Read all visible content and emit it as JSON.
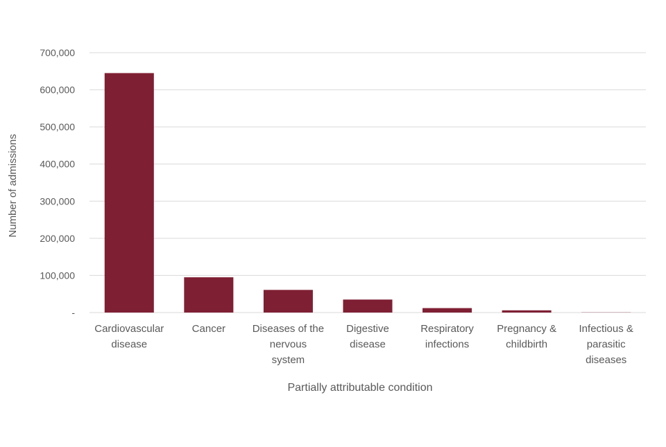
{
  "chart_data": {
    "type": "bar",
    "title": "",
    "xlabel": "Partially attributable condition",
    "ylabel": "Number of admissions",
    "categories": [
      [
        "Cardiovascular",
        "disease"
      ],
      [
        "Cancer"
      ],
      [
        "Diseases of the",
        "nervous",
        "system"
      ],
      [
        "Digestive",
        "disease"
      ],
      [
        "Respiratory",
        "infections"
      ],
      [
        "Pregnancy &",
        "childbirth"
      ],
      [
        "Infectious &",
        "parasitic",
        "diseases"
      ]
    ],
    "values": [
      645000,
      95000,
      61000,
      35000,
      12000,
      6000,
      500
    ],
    "ylim": [
      0,
      700000
    ],
    "yticks": [
      0,
      100000,
      200000,
      300000,
      400000,
      500000,
      600000,
      700000
    ],
    "ytick_labels": [
      "-",
      "100,000",
      "200,000",
      "300,000",
      "400,000",
      "500,000",
      "600,000",
      "700,000"
    ],
    "grid": true,
    "legend": "none",
    "colors": {
      "bar": "#7f1f33",
      "grid": "#d9d9d9",
      "text": "#595959"
    }
  }
}
